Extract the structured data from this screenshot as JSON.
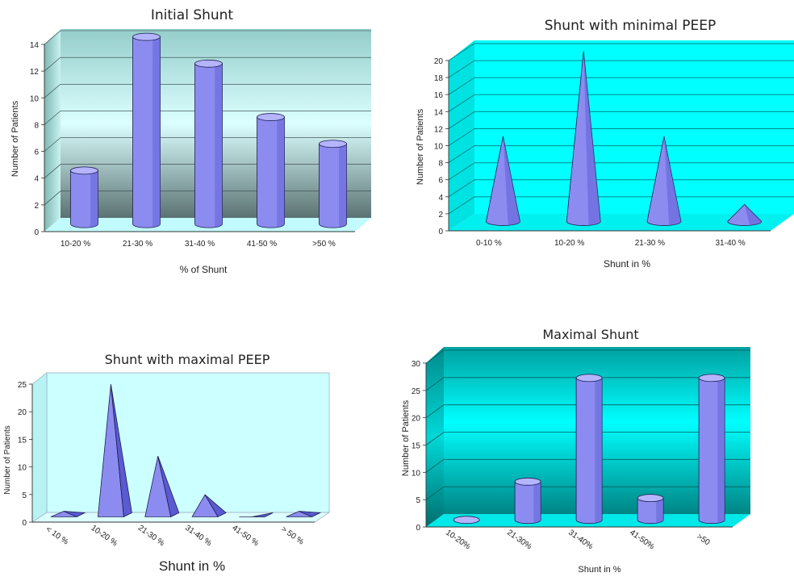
{
  "chart_data": [
    {
      "type": "bar",
      "title": "Initial Shunt",
      "xlabel": "% of Shunt",
      "ylabel": "Number of Patients",
      "categories": [
        "10-20 %",
        "21-30 %",
        "31-40 %",
        "41-50 %",
        ">50 %"
      ],
      "values": [
        4,
        14,
        12,
        8,
        6
      ],
      "ylim": [
        0,
        14
      ],
      "yticks": [
        "0",
        "2",
        "4",
        "6",
        "8",
        "10",
        "12",
        "14"
      ],
      "mark": "cylinder",
      "grid": true
    },
    {
      "type": "bar",
      "title": "Shunt with minimal PEEP",
      "xlabel": "Shunt in %",
      "ylabel": "Number of Patients",
      "categories": [
        "0-10 %",
        "10-20 %",
        "21-30 %",
        "31-40 %"
      ],
      "values": [
        10,
        20,
        10,
        2
      ],
      "ylim": [
        0,
        20
      ],
      "yticks": [
        "0",
        "2",
        "4",
        "6",
        "8",
        "10",
        "12",
        "14",
        "16",
        "18",
        "20"
      ],
      "mark": "cone",
      "grid": true
    },
    {
      "type": "bar",
      "title": "Shunt with maximal PEEP",
      "xlabel": "Shunt in %",
      "ylabel": "Number of Patients",
      "categories": [
        "< 10 %",
        "10-20 %",
        "21-30 %",
        "31-40 %",
        "41-50 %",
        "> 50 %"
      ],
      "values": [
        1,
        24,
        11,
        4,
        0,
        1
      ],
      "ylim": [
        0,
        25
      ],
      "yticks": [
        "0",
        "5",
        "10",
        "15",
        "20",
        "25"
      ],
      "mark": "pyramid",
      "grid": false
    },
    {
      "type": "bar",
      "title": "Maximal Shunt",
      "xlabel": "Shunt in %",
      "ylabel": "Number of Patients",
      "categories": [
        "10-20%",
        "21-30%",
        "31-40%",
        "41-50%",
        ">50"
      ],
      "values": [
        0,
        7,
        26,
        4,
        26
      ],
      "ylim": [
        0,
        30
      ],
      "yticks": [
        "0",
        "5",
        "10",
        "15",
        "20",
        "25",
        "30"
      ],
      "mark": "cylinder",
      "grid": true
    }
  ],
  "colors": {
    "bar_fill": "#8c8cf0",
    "bar_dark": "#5a5ad2",
    "bar_top": "#b4b4ff",
    "outline": "#1e1e50",
    "chart1_wall_top": "#a3d4d1",
    "chart1_wall_mid": "#d6ffff",
    "chart1_wall_bottom": "#5e7575",
    "chart2_wall": "#00ffff",
    "chart3_wall": "#ccffff",
    "chart4_wall_top": "#00a5a5",
    "chart4_wall_mid": "#00ffff",
    "chart4_wall_bottom": "#008a8a"
  }
}
